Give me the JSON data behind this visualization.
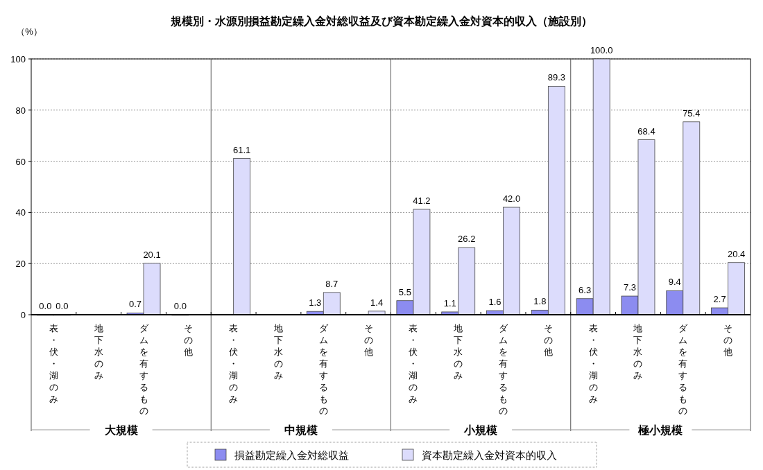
{
  "chart_data": {
    "type": "bar",
    "title": "規模別・水源別損益勘定繰入金対総収益及び資本勘定繰入金対資本的収入（施設別）",
    "ylabel": "（%）",
    "categories": [
      "表・伏・湖のみ",
      "地下水のみ",
      "ダムを有するもの",
      "その他",
      "表・伏・湖のみ",
      "地下水のみ",
      "ダムを有するもの",
      "その他",
      "表・伏・湖のみ",
      "地下水のみ",
      "ダムを有するもの",
      "その他",
      "表・伏・湖のみ",
      "地下水のみ",
      "ダムを有するもの",
      "その他"
    ],
    "annotations": [
      "大規模",
      "中規模",
      "小規模",
      "極小規模"
    ],
    "series": [
      {
        "name": "損益勘定繰入金対総収益",
        "color": "#8c8cf0",
        "values": [
          0.0,
          null,
          0.7,
          0.0,
          null,
          null,
          1.3,
          null,
          5.5,
          1.1,
          1.6,
          1.8,
          6.3,
          7.3,
          9.4,
          2.7
        ],
        "value_labels": [
          "0.0",
          null,
          "0.7",
          "0.0",
          null,
          null,
          "1.3",
          null,
          "5.5",
          "1.1",
          "1.6",
          "1.8",
          "6.3",
          "7.3",
          "9.4",
          "2.7"
        ]
      },
      {
        "name": "資本勘定繰入金対資本的収入",
        "color": "#dcdcfc",
        "values": [
          0.0,
          null,
          20.1,
          null,
          61.1,
          null,
          8.7,
          1.4,
          41.2,
          26.2,
          42.0,
          89.3,
          100.0,
          68.4,
          75.4,
          20.4
        ],
        "value_labels": [
          "0.0",
          null,
          "20.1",
          null,
          "61.1",
          null,
          "8.7",
          "1.4",
          "41.2",
          "26.2",
          "42.0",
          "89.3",
          "100.0",
          "68.4",
          "75.4",
          "20.4"
        ]
      }
    ],
    "ylim": [
      0,
      100
    ],
    "yticks": [
      0,
      20,
      40,
      60,
      80,
      100
    ],
    "grid": "y",
    "legend": "bottom"
  }
}
